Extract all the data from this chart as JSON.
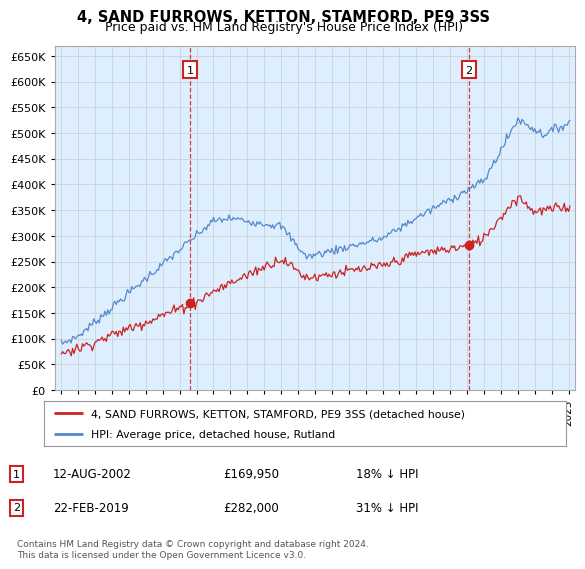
{
  "title": "4, SAND FURROWS, KETTON, STAMFORD, PE9 3SS",
  "subtitle": "Price paid vs. HM Land Registry's House Price Index (HPI)",
  "title_fontsize": 10.5,
  "subtitle_fontsize": 9,
  "yticks": [
    0,
    50000,
    100000,
    150000,
    200000,
    250000,
    300000,
    350000,
    400000,
    450000,
    500000,
    550000,
    600000,
    650000
  ],
  "ylim": [
    0,
    670000
  ],
  "xlim_start": 1994.6,
  "xlim_end": 2025.4,
  "grid_color": "#cccccc",
  "chart_bg_color": "#ddeeff",
  "hpi_color": "#5588cc",
  "price_color": "#cc2222",
  "vline1_x": 2002.62,
  "vline2_x": 2019.12,
  "sale1_y": 169950,
  "sale2_y": 282000,
  "annotation1_label": "1",
  "annotation2_label": "2",
  "legend_label_price": "4, SAND FURROWS, KETTON, STAMFORD, PE9 3SS (detached house)",
  "legend_label_hpi": "HPI: Average price, detached house, Rutland",
  "table_rows": [
    {
      "num": "1",
      "date": "12-AUG-2002",
      "price": "£169,950",
      "hpi": "18% ↓ HPI"
    },
    {
      "num": "2",
      "date": "22-FEB-2019",
      "price": "£282,000",
      "hpi": "31% ↓ HPI"
    }
  ],
  "footer": "Contains HM Land Registry data © Crown copyright and database right 2024.\nThis data is licensed under the Open Government Licence v3.0.",
  "background_color": "#ffffff"
}
